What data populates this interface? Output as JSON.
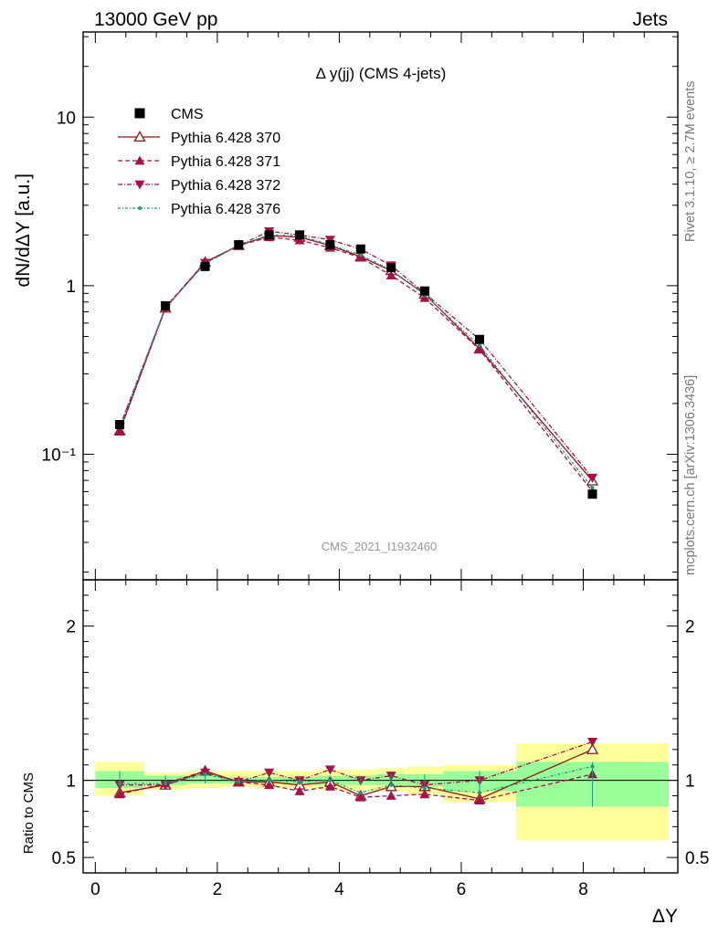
{
  "header": {
    "left": "13000 GeV pp",
    "right": "Jets"
  },
  "side_labels": {
    "rivet": "Rivet 3.1.10, ≥ 2.7M events",
    "mcplots": "mcplots.cern.ch [arXiv:1306.3436]"
  },
  "chart_data": {
    "type": "scatter",
    "title": "Δ y(jj) (CMS 4-jets)",
    "watermark": "CMS_2021_I1932460",
    "xlabel": "ΔY",
    "ylabel": "dN/dΔY [a.u.]",
    "ratio_ylabel": "Ratio to CMS",
    "xlim": [
      -0.2,
      9.55
    ],
    "ylim": [
      0.018,
      32
    ],
    "ylog": true,
    "ratio_ylim": [
      0.4,
      2.3
    ],
    "x_ticks": [
      "0",
      "2",
      "4",
      "6",
      "8"
    ],
    "y_ticks": [
      "10",
      "1",
      "10⁻¹"
    ],
    "ratio_ticks": [
      "2",
      "1",
      "0.5"
    ],
    "bins": [
      {
        "lo": 0.0,
        "hi": 0.8,
        "x": 0.4
      },
      {
        "lo": 0.8,
        "hi": 1.5,
        "x": 1.15
      },
      {
        "lo": 1.5,
        "hi": 2.1,
        "x": 1.8
      },
      {
        "lo": 2.1,
        "hi": 2.6,
        "x": 2.35
      },
      {
        "lo": 2.6,
        "hi": 3.1,
        "x": 2.85
      },
      {
        "lo": 3.1,
        "hi": 3.6,
        "x": 3.35
      },
      {
        "lo": 3.6,
        "hi": 4.1,
        "x": 3.85
      },
      {
        "lo": 4.1,
        "hi": 4.6,
        "x": 4.35
      },
      {
        "lo": 4.6,
        "hi": 5.1,
        "x": 4.85
      },
      {
        "lo": 5.1,
        "hi": 5.7,
        "x": 5.4
      },
      {
        "lo": 5.7,
        "hi": 6.9,
        "x": 6.3
      },
      {
        "lo": 6.9,
        "hi": 9.4,
        "x": 8.15
      }
    ],
    "cms": [
      0.15,
      0.76,
      1.3,
      1.75,
      2.0,
      2.0,
      1.75,
      1.65,
      1.28,
      0.93,
      0.48,
      0.058
    ],
    "band_inner": [
      [
        0.95,
        1.06
      ],
      [
        0.97,
        1.03
      ],
      [
        0.98,
        1.03
      ],
      [
        0.98,
        1.02
      ],
      [
        0.98,
        1.02
      ],
      [
        0.98,
        1.02
      ],
      [
        0.97,
        1.03
      ],
      [
        0.97,
        1.03
      ],
      [
        0.97,
        1.04
      ],
      [
        0.96,
        1.04
      ],
      [
        0.93,
        1.06
      ],
      [
        0.83,
        1.12
      ]
    ],
    "band_outer": [
      [
        0.9,
        1.12
      ],
      [
        0.94,
        1.05
      ],
      [
        0.95,
        1.06
      ],
      [
        0.96,
        1.06
      ],
      [
        0.95,
        1.06
      ],
      [
        0.95,
        1.06
      ],
      [
        0.94,
        1.07
      ],
      [
        0.93,
        1.07
      ],
      [
        0.93,
        1.08
      ],
      [
        0.91,
        1.09
      ],
      [
        0.86,
        1.1
      ],
      [
        0.61,
        1.24
      ]
    ],
    "legend": [
      {
        "name": "CMS",
        "color": "#000000",
        "dash": "",
        "marker": "square-filled"
      },
      {
        "name": "Pythia 6.428 370",
        "color": "#8b1a1a",
        "dash": "",
        "marker": "triangle-up-open"
      },
      {
        "name": "Pythia 6.428 371",
        "color": "#a8104a",
        "dash": "5,3",
        "marker": "triangle-up-filled"
      },
      {
        "name": "Pythia 6.428 372",
        "color": "#a8104a",
        "dash": "5,2,1,2",
        "marker": "triangle-down-filled"
      },
      {
        "name": "Pythia 6.428 376",
        "color": "#1a9a7a",
        "dash": "3,2,1,2",
        "marker": "circle-small"
      }
    ],
    "series": [
      {
        "name": "Pythia 6.428 370",
        "ratio": [
          0.92,
          0.97,
          1.06,
          0.99,
          0.99,
          0.97,
          0.99,
          0.9,
          0.96,
          0.96,
          0.88,
          1.2
        ]
      },
      {
        "name": "Pythia 6.428 371",
        "ratio": [
          0.91,
          0.98,
          1.06,
          0.99,
          0.97,
          0.93,
          0.96,
          0.89,
          0.9,
          0.91,
          0.87,
          1.04
        ]
      },
      {
        "name": "Pythia 6.428 372",
        "ratio": [
          0.97,
          0.97,
          1.05,
          0.99,
          1.05,
          1.0,
          1.07,
          1.0,
          1.03,
          0.97,
          1.0,
          1.25
        ]
      },
      {
        "name": "Pythia 6.428 376",
        "ratio": [
          0.98,
          0.98,
          1.04,
          0.99,
          1.0,
          0.99,
          1.0,
          0.92,
          0.97,
          0.95,
          0.92,
          1.09
        ]
      }
    ]
  }
}
